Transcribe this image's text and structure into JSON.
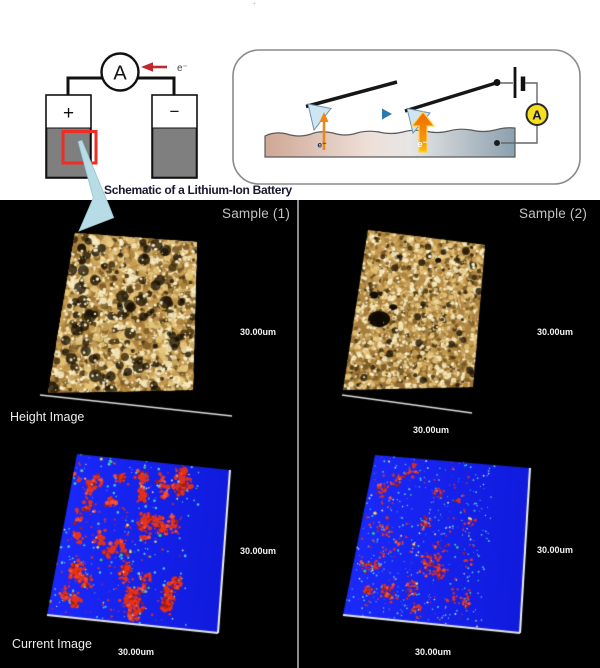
{
  "stray_mark": "+",
  "battery_schematic": {
    "caption": "Schematic of a Lithium-Ion Battery",
    "ammeter_label": "A",
    "electron_label": "e⁻",
    "positive_label": "+",
    "negative_label": "−",
    "colors": {
      "electrode_fill": "#7f7f7f",
      "highlight_box": "#ee2e24",
      "electron_arrow": "#c1272d",
      "wire": "#111111"
    }
  },
  "probe_schematic": {
    "ammeter_label": "A",
    "surface_electron_label": "e⁻",
    "tip_electron_label": "e⁻",
    "colors": {
      "ammeter_fill": "#f6df1e",
      "tip_fill": "#cfe6f2",
      "arrow_orange": "#f07d12",
      "scan_arrow_start": "#35a06a",
      "scan_arrow_end": "#2a7ab0",
      "surface_left": "#cfa795",
      "surface_mid": "#eee0d8",
      "surface_right": "#8ba0ae"
    }
  },
  "afm_panel": {
    "background": "#000000",
    "divider_color": "#8d8d8d",
    "annotation_arrow_color": "#b7dce6",
    "samples": [
      {
        "title": "Sample (1)",
        "height_label": "Height Image",
        "current_label": "Current Image",
        "height_scale_right": "30.00um",
        "current_scale_right": "30.00um",
        "current_scale_bottom": "30.00um"
      },
      {
        "title": "Sample (2)",
        "height_scale_right": "30.00um",
        "height_scale_bottom": "30.00um",
        "current_scale_right": "30.00um",
        "current_scale_bottom": "30.00um"
      }
    ],
    "texture": {
      "height": {
        "base_top": "#c59a52",
        "base_bottom": "#8f6c32",
        "cream": "#f7ecc2",
        "light": "#e6c77e",
        "mid": "#c89e55",
        "tan": "#a87f3a",
        "brown": "#7a5a24",
        "dark": "#46320f",
        "vdark": "#1a1204",
        "baseline": "#e0e0e0"
      },
      "current": {
        "base1": "#1a28f8",
        "base2": "#101bdd",
        "red": "#e63118",
        "red2": "#ff5030",
        "dark_red": "#a81f0c",
        "teal": "#5ad8dc",
        "white": "#f0f0f0",
        "yellow": "#ffe24a",
        "green": "#3ed060",
        "edge": "#f2f2f2"
      }
    }
  }
}
